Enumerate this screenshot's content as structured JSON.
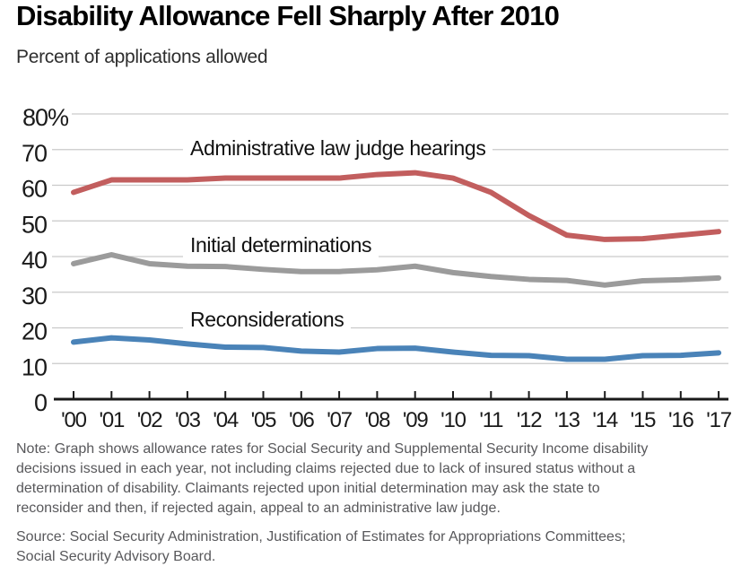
{
  "header": {
    "title": "Disability Allowance Fell Sharply After 2010",
    "subtitle": "Percent of applications allowed"
  },
  "chart_data": {
    "type": "line",
    "title": "Disability Allowance Fell Sharply After 2010",
    "subtitle": "Percent of applications allowed",
    "xlabel": "",
    "ylabel": "Percent of applications allowed",
    "ylim": [
      0,
      80
    ],
    "grid": true,
    "legend_position": "inline-labels",
    "x": [
      "'00",
      "'01",
      "'02",
      "'03",
      "'04",
      "'05",
      "'06",
      "'07",
      "'08",
      "'09",
      "'10",
      "'11",
      "'12",
      "'13",
      "'14",
      "'15",
      "'16",
      "'17"
    ],
    "yticks": [
      {
        "v": 80,
        "label": "80%"
      },
      {
        "v": 70,
        "label": "70"
      },
      {
        "v": 60,
        "label": "60"
      },
      {
        "v": 50,
        "label": "50"
      },
      {
        "v": 40,
        "label": "40"
      },
      {
        "v": 30,
        "label": "30"
      },
      {
        "v": 20,
        "label": "20"
      },
      {
        "v": 10,
        "label": "10"
      },
      {
        "v": 0,
        "label": "0"
      }
    ],
    "series": [
      {
        "id": "administrative-law-judge-hearings",
        "name": "Administrative law judge hearings",
        "color": "#c25e5e",
        "values": [
          58,
          61.5,
          61.5,
          61.5,
          62,
          62,
          62,
          62,
          63,
          63.5,
          62,
          58,
          51.5,
          46,
          44.8,
          45,
          46,
          47
        ]
      },
      {
        "id": "initial-determinations",
        "name": "Initial determinations",
        "color": "#9b9b9b",
        "values": [
          38,
          40.5,
          38,
          37.3,
          37.2,
          36.4,
          35.8,
          35.8,
          36.3,
          37.3,
          35.5,
          34.4,
          33.6,
          33.3,
          32,
          33.2,
          33.5,
          34
        ]
      },
      {
        "id": "reconsiderations",
        "name": "Reconsiderations",
        "color": "#4a83b8",
        "values": [
          16,
          17.2,
          16.6,
          15.5,
          14.6,
          14.5,
          13.5,
          13.2,
          14.2,
          14.3,
          13.2,
          12.3,
          12.2,
          11.2,
          11.2,
          12.2,
          12.3,
          13
        ]
      }
    ],
    "colors": {
      "axis": "#1a1a1a",
      "grid": "#c9c9c9"
    }
  },
  "notes": {
    "note": "Note: Graph shows allowance rates for Social Security and Supplemental Security Income disability decisions issued in each year, not including claims rejected due to lack of insured status without a determination of disability. Claimants rejected upon initial determination may ask the state to reconsider and then, if rejected again, appeal to an administrative law judge.",
    "source": "Source: Social Security Administration, Justification of Estimates for Appropriations Committees; Social Security Advisory Board."
  }
}
